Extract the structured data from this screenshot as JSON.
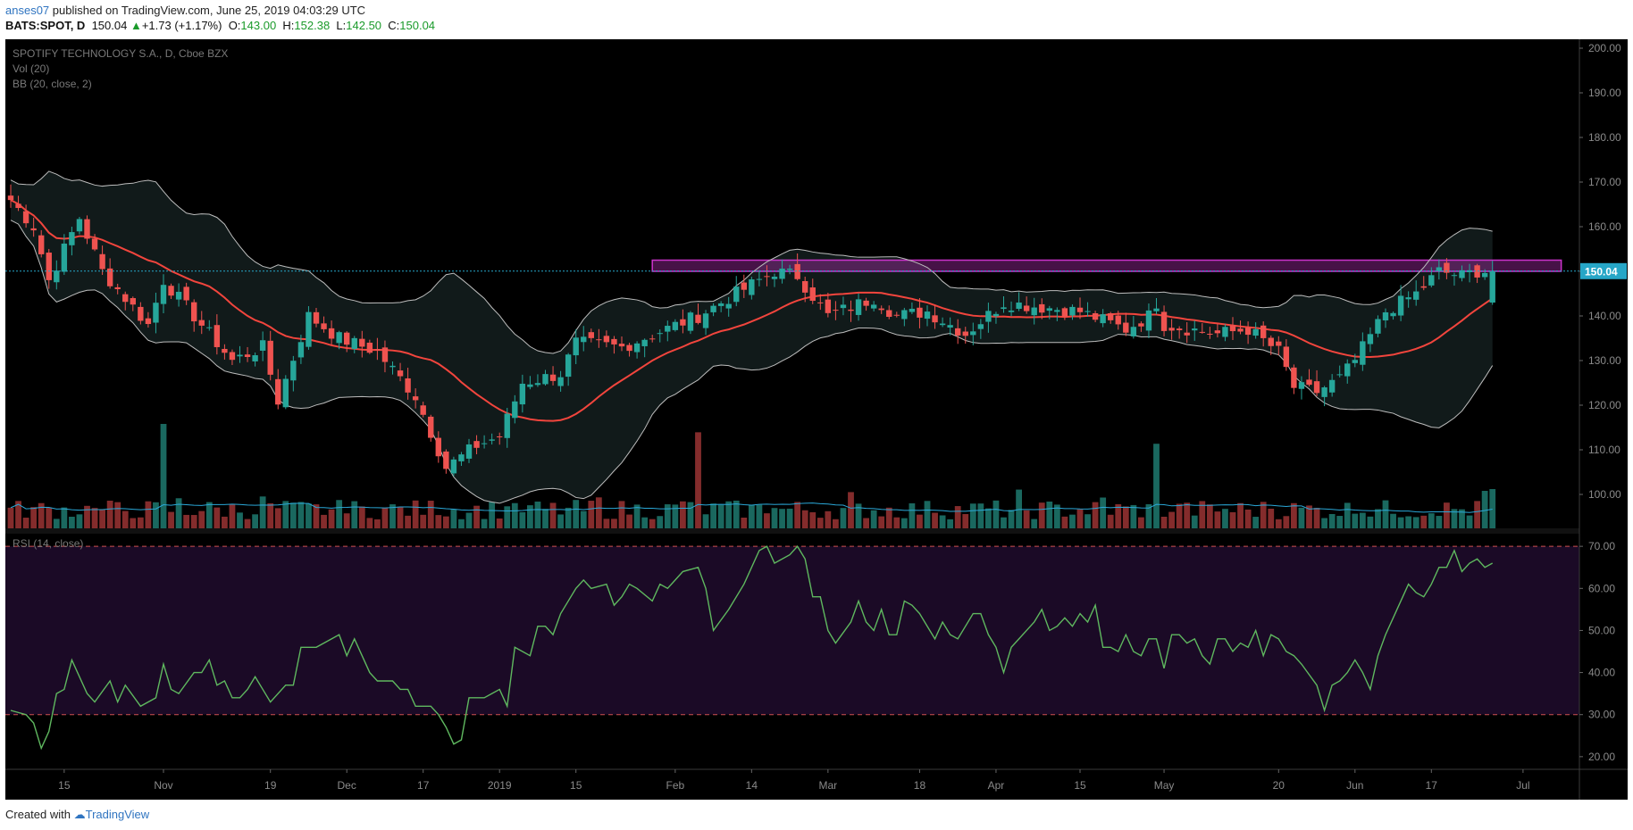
{
  "header": {
    "user": "anses07",
    "published_text": "published on TradingView.com, June 25, 2019 04:03:29 UTC",
    "symbol": "BATS:SPOT, D",
    "close": "150.04",
    "change": "+1.73 (+1.17%)",
    "o_label": "O:",
    "o": "143.00",
    "h_label": "H:",
    "h": "152.38",
    "l_label": "L:",
    "l": "142.50",
    "c_label": "C:",
    "c": "150.04"
  },
  "footer": {
    "created": "Created with",
    "brand": "TradingView"
  },
  "colors": {
    "up": "#26a69a",
    "down": "#ef5350",
    "ma": "#f2453d",
    "bb": "#bdbdbd",
    "rsi": "#5fb85f",
    "zone": "#cc33cc"
  },
  "chart_data": [
    {
      "type": "candlestick",
      "title": "SPOTIFY TECHNOLOGY S.A., D, Cboe BZX",
      "legend": [
        "Vol (20)",
        "BB (20, close, 2)"
      ],
      "y_ticks": [
        "200.00",
        "190.00",
        "180.00",
        "170.00",
        "160.00",
        "150.00",
        "140.00",
        "130.00",
        "120.00",
        "110.00",
        "100.00"
      ],
      "ylim": [
        94,
        202
      ],
      "last_price_label": "150.04",
      "last_price": 150.04,
      "resistance_zone": {
        "from_bar": 84,
        "to_bar": 203,
        "low": 150,
        "high": 152.5
      },
      "x_ticks": [
        {
          "label": "15",
          "bar": 7
        },
        {
          "label": "Nov",
          "bar": 20
        },
        {
          "label": "19",
          "bar": 34
        },
        {
          "label": "Dec",
          "bar": 44
        },
        {
          "label": "17",
          "bar": 54
        },
        {
          "label": "2019",
          "bar": 64
        },
        {
          "label": "15",
          "bar": 74
        },
        {
          "label": "Feb",
          "bar": 87
        },
        {
          "label": "14",
          "bar": 97
        },
        {
          "label": "Mar",
          "bar": 107
        },
        {
          "label": "18",
          "bar": 119
        },
        {
          "label": "Apr",
          "bar": 129
        },
        {
          "label": "15",
          "bar": 140
        },
        {
          "label": "May",
          "bar": 151
        },
        {
          "label": "20",
          "bar": 166
        },
        {
          "label": "Jun",
          "bar": 176
        },
        {
          "label": "17",
          "bar": 186
        },
        {
          "label": "Jul",
          "bar": 198
        }
      ],
      "anchors": [
        [
          0,
          166
        ],
        [
          3,
          160
        ],
        [
          5,
          148
        ],
        [
          9,
          162
        ],
        [
          12,
          150
        ],
        [
          18,
          138
        ],
        [
          20,
          148
        ],
        [
          24,
          140
        ],
        [
          29,
          130
        ],
        [
          33,
          133
        ],
        [
          35,
          121
        ],
        [
          39,
          140
        ],
        [
          43,
          135
        ],
        [
          48,
          132
        ],
        [
          53,
          122
        ],
        [
          57,
          106
        ],
        [
          61,
          111
        ],
        [
          64,
          113
        ],
        [
          67,
          125
        ],
        [
          72,
          127
        ],
        [
          74,
          134
        ],
        [
          80,
          133
        ],
        [
          90,
          140
        ],
        [
          95,
          145
        ],
        [
          100,
          150
        ],
        [
          103,
          149
        ],
        [
          107,
          140
        ],
        [
          113,
          144
        ],
        [
          116,
          140
        ],
        [
          120,
          141
        ],
        [
          125,
          136
        ],
        [
          130,
          143
        ],
        [
          140,
          141
        ],
        [
          146,
          137
        ],
        [
          149,
          140
        ],
        [
          150,
          143
        ],
        [
          151,
          138
        ],
        [
          158,
          136
        ],
        [
          162,
          137
        ],
        [
          166,
          132
        ],
        [
          168,
          124
        ],
        [
          171,
          123
        ],
        [
          174,
          126
        ],
        [
          176,
          130
        ],
        [
          180,
          141
        ],
        [
          184,
          145
        ],
        [
          187,
          150
        ],
        [
          190,
          149
        ],
        [
          192,
          150.04
        ]
      ],
      "ohlc_note": "OHLC values synthesized from price path anchors",
      "volume_spikes": [
        {
          "bar": 20,
          "value": 100
        },
        {
          "bar": 90,
          "value": 92
        },
        {
          "bar": 150,
          "value": 81
        }
      ],
      "volume_ma": true
    },
    {
      "type": "line",
      "title": "RSI (14, close)",
      "y_ticks": [
        "70.00",
        "60.00",
        "50.00",
        "40.00",
        "30.00",
        "20.00"
      ],
      "ylim": [
        17,
        73
      ],
      "levels": [
        70,
        30
      ],
      "anchors": [
        [
          0,
          31
        ],
        [
          2,
          30
        ],
        [
          3,
          28
        ],
        [
          4,
          22
        ],
        [
          5,
          26
        ],
        [
          6,
          35
        ],
        [
          7,
          36
        ],
        [
          8,
          43
        ],
        [
          10,
          35
        ],
        [
          11,
          33
        ],
        [
          13,
          38
        ],
        [
          14,
          33
        ],
        [
          15,
          37
        ],
        [
          17,
          32
        ],
        [
          19,
          34
        ],
        [
          20,
          42
        ],
        [
          21,
          36
        ],
        [
          22,
          35
        ],
        [
          24,
          40
        ],
        [
          25,
          40
        ],
        [
          26,
          43
        ],
        [
          27,
          37
        ],
        [
          28,
          38
        ],
        [
          29,
          34
        ],
        [
          30,
          34
        ],
        [
          31,
          36
        ],
        [
          32,
          39
        ],
        [
          33,
          36
        ],
        [
          34,
          33
        ],
        [
          36,
          37
        ],
        [
          37,
          37
        ],
        [
          38,
          46
        ],
        [
          40,
          46
        ],
        [
          42,
          48
        ],
        [
          43,
          49
        ],
        [
          44,
          44
        ],
        [
          45,
          48
        ],
        [
          47,
          40
        ],
        [
          48,
          38
        ],
        [
          50,
          38
        ],
        [
          51,
          36
        ],
        [
          52,
          36
        ],
        [
          53,
          32
        ],
        [
          55,
          32
        ],
        [
          56,
          30
        ],
        [
          57,
          27
        ],
        [
          58,
          23
        ],
        [
          59,
          24
        ],
        [
          60,
          34
        ],
        [
          61,
          34
        ],
        [
          62,
          34
        ],
        [
          63,
          35
        ],
        [
          64,
          36
        ],
        [
          65,
          32
        ],
        [
          66,
          46
        ],
        [
          68,
          44
        ],
        [
          69,
          51
        ],
        [
          70,
          51
        ],
        [
          71,
          49
        ],
        [
          72,
          54
        ],
        [
          74,
          60
        ],
        [
          75,
          62
        ],
        [
          76,
          60
        ],
        [
          78,
          61
        ],
        [
          79,
          56
        ],
        [
          80,
          58
        ],
        [
          81,
          61
        ],
        [
          82,
          60
        ],
        [
          84,
          57
        ],
        [
          85,
          61
        ],
        [
          86,
          60
        ],
        [
          87,
          62
        ],
        [
          88,
          64
        ],
        [
          90,
          65
        ],
        [
          91,
          60
        ],
        [
          92,
          50
        ],
        [
          94,
          55
        ],
        [
          96,
          61
        ],
        [
          98,
          69
        ],
        [
          99,
          70
        ],
        [
          100,
          66
        ],
        [
          102,
          68
        ],
        [
          103,
          70
        ],
        [
          104,
          67
        ],
        [
          105,
          58
        ],
        [
          106,
          58
        ],
        [
          107,
          50
        ],
        [
          108,
          47
        ],
        [
          110,
          52
        ],
        [
          111,
          57
        ],
        [
          112,
          52
        ],
        [
          113,
          50
        ],
        [
          114,
          55
        ],
        [
          115,
          49
        ],
        [
          116,
          49
        ],
        [
          117,
          57
        ],
        [
          118,
          56
        ],
        [
          119,
          54
        ],
        [
          120,
          51
        ],
        [
          121,
          48
        ],
        [
          122,
          52
        ],
        [
          123,
          49
        ],
        [
          124,
          48
        ],
        [
          126,
          54
        ],
        [
          127,
          54
        ],
        [
          128,
          49
        ],
        [
          129,
          46
        ],
        [
          130,
          40
        ],
        [
          131,
          46
        ],
        [
          132,
          48
        ],
        [
          133,
          50
        ],
        [
          134,
          52
        ],
        [
          135,
          55
        ],
        [
          136,
          50
        ],
        [
          137,
          51
        ],
        [
          138,
          53
        ],
        [
          139,
          51
        ],
        [
          140,
          54
        ],
        [
          141,
          52
        ],
        [
          142,
          56
        ],
        [
          143,
          46
        ],
        [
          144,
          46
        ],
        [
          145,
          45
        ],
        [
          146,
          49
        ],
        [
          147,
          45
        ],
        [
          148,
          44
        ],
        [
          149,
          48
        ],
        [
          150,
          48
        ],
        [
          151,
          41
        ],
        [
          152,
          49
        ],
        [
          153,
          49
        ],
        [
          154,
          47
        ],
        [
          155,
          48
        ],
        [
          156,
          44
        ],
        [
          157,
          42
        ],
        [
          158,
          48
        ],
        [
          159,
          48
        ],
        [
          160,
          45
        ],
        [
          161,
          47
        ],
        [
          162,
          46
        ],
        [
          163,
          50
        ],
        [
          164,
          44
        ],
        [
          165,
          49
        ],
        [
          166,
          48
        ],
        [
          167,
          45
        ],
        [
          168,
          44
        ],
        [
          169,
          42
        ],
        [
          171,
          37
        ],
        [
          172,
          31
        ],
        [
          173,
          37
        ],
        [
          174,
          38
        ],
        [
          175,
          40
        ],
        [
          176,
          43
        ],
        [
          177,
          40
        ],
        [
          178,
          36
        ],
        [
          179,
          44
        ],
        [
          180,
          49
        ],
        [
          181,
          53
        ],
        [
          182,
          57
        ],
        [
          183,
          61
        ],
        [
          184,
          59
        ],
        [
          185,
          58
        ],
        [
          186,
          61
        ],
        [
          187,
          65
        ],
        [
          188,
          65
        ],
        [
          189,
          69
        ],
        [
          190,
          64
        ],
        [
          191,
          66
        ],
        [
          192,
          67
        ],
        [
          193,
          65
        ],
        [
          194,
          66
        ]
      ]
    }
  ]
}
